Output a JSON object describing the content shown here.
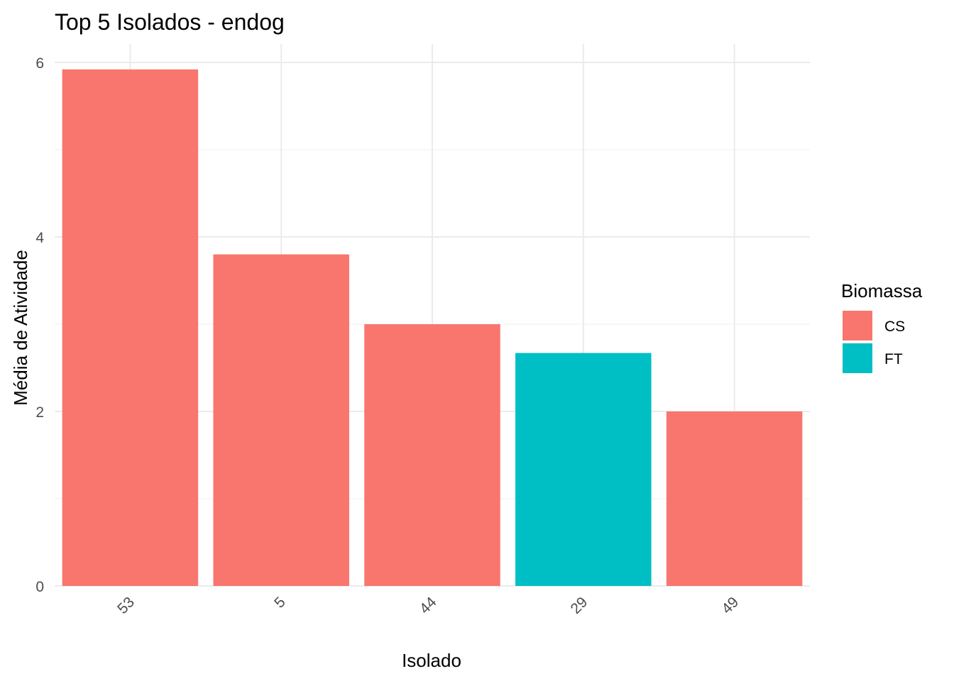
{
  "chart_data": {
    "type": "bar",
    "title": "Top 5 Isolados - endog",
    "xlabel": "Isolado",
    "ylabel": "Média de Atividade",
    "categories": [
      "53",
      "5",
      "44",
      "29",
      "49"
    ],
    "values": [
      5.92,
      3.8,
      3.0,
      2.67,
      2.0
    ],
    "groups": [
      "CS",
      "CS",
      "CS",
      "FT",
      "CS"
    ],
    "ylim": [
      0,
      6.3
    ],
    "yticks": [
      0,
      2,
      4,
      6
    ],
    "grid": true,
    "x_tick_rotation": 45,
    "legend": {
      "title": "Biomassa",
      "position": "right",
      "items": [
        {
          "name": "CS",
          "color": "#F8766D"
        },
        {
          "name": "FT",
          "color": "#00BFC4"
        }
      ]
    }
  }
}
